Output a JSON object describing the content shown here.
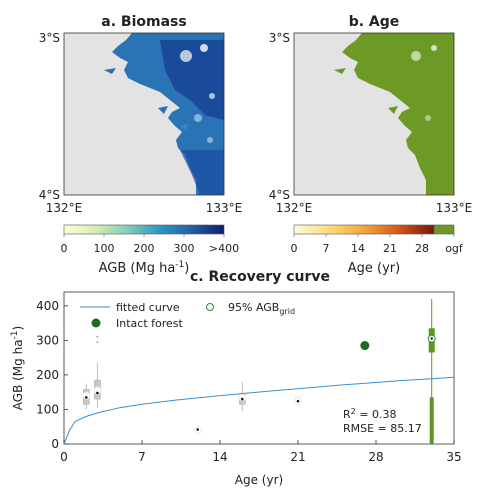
{
  "panels": {
    "biomass": {
      "title": "a. Biomass",
      "lat_labels": [
        "3°S",
        "4°S"
      ],
      "lon_labels": [
        "132°E",
        "133°E"
      ],
      "colorbar_ticks": [
        "0",
        "100",
        "200",
        "300",
        ">400"
      ],
      "colorbar_label": "AGB (Mg ha",
      "colorbar_label_sup": "-1",
      "colorbar_label_end": ")",
      "colors": {
        "land_low": "#e9f6b8",
        "land_mid": "#2a80b9",
        "land_high": "#0d2a83",
        "background": "#e3e3e3",
        "sea_patch": "#3b86c3"
      }
    },
    "age": {
      "title": "b. Age",
      "lat_labels": [
        "3°S",
        "4°S"
      ],
      "lon_labels": [
        "132°E",
        "133°E"
      ],
      "colorbar_ticks": [
        "0",
        "7",
        "14",
        "21",
        "28",
        "ogf"
      ],
      "colorbar_label": "Age (yr)",
      "colors": {
        "forest": "#6c9a24",
        "background": "#e3e3e3"
      }
    }
  },
  "recovery": {
    "title": "c. Recovery curve",
    "legend": {
      "fitted": "fitted curve",
      "grid_main": "95% AGB",
      "grid_sub": "grid",
      "intact": "Intact forest"
    },
    "r2_main": "R",
    "r2_sup": "2",
    "r2_value": " = 0.38",
    "rmse": "RMSE = 85.17"
  },
  "chart_data": {
    "type": "scatter",
    "title": "c. Recovery curve",
    "xlabel": "Age (yr)",
    "ylabel": "AGB (Mg ha",
    "ylabel_sup": "-1",
    "ylabel_end": ")",
    "xlim": [
      0,
      35
    ],
    "ylim": [
      0,
      440
    ],
    "xticks": [
      0,
      7,
      14,
      21,
      28,
      35
    ],
    "yticks": [
      0,
      100,
      200,
      300,
      400
    ],
    "fitted_curve": {
      "x": [
        0,
        0.5,
        1,
        2,
        3,
        5,
        7,
        10,
        14,
        18,
        21,
        25,
        28,
        30,
        33,
        35
      ],
      "y": [
        0,
        40,
        65,
        80,
        90,
        105,
        115,
        127,
        140,
        152,
        160,
        171,
        178,
        183,
        189,
        193
      ]
    },
    "boxplots": [
      {
        "x": 2,
        "q1": 115,
        "median": 135,
        "q3": 158,
        "whisker_low": 100,
        "whisker_high": 175,
        "grid95": 140,
        "fliers": []
      },
      {
        "x": 3,
        "q1": 130,
        "median": 148,
        "q3": 185,
        "whisker_low": 105,
        "whisker_high": 235,
        "grid95": 155,
        "fliers": [
          295,
          310
        ]
      },
      {
        "x": 12,
        "q1": 38,
        "median": 42,
        "q3": 46,
        "whisker_low": 34,
        "whisker_high": 50,
        "grid95": 40,
        "fliers": []
      },
      {
        "x": 16,
        "q1": 115,
        "median": 130,
        "q3": 145,
        "whisker_low": 95,
        "whisker_high": 180,
        "grid95": 135,
        "fliers": []
      },
      {
        "x": 21,
        "q1": 120,
        "median": 124,
        "q3": 128,
        "whisker_low": 117,
        "whisker_high": 131,
        "grid95": 125,
        "fliers": []
      }
    ],
    "ogf_box": {
      "x": 33,
      "q1": 265,
      "median": 300,
      "q3": 335,
      "whisker_low": 0,
      "whisker_high": 420,
      "grid95": 305,
      "lower_bar_to": 135
    },
    "intact_forest": [
      {
        "x": 27,
        "y": 285
      }
    ],
    "colors": {
      "fitted": "#3a8fd1",
      "intact": "#1b6b1b",
      "ogf": "#5f961f",
      "box": "#c8c8c8"
    }
  }
}
